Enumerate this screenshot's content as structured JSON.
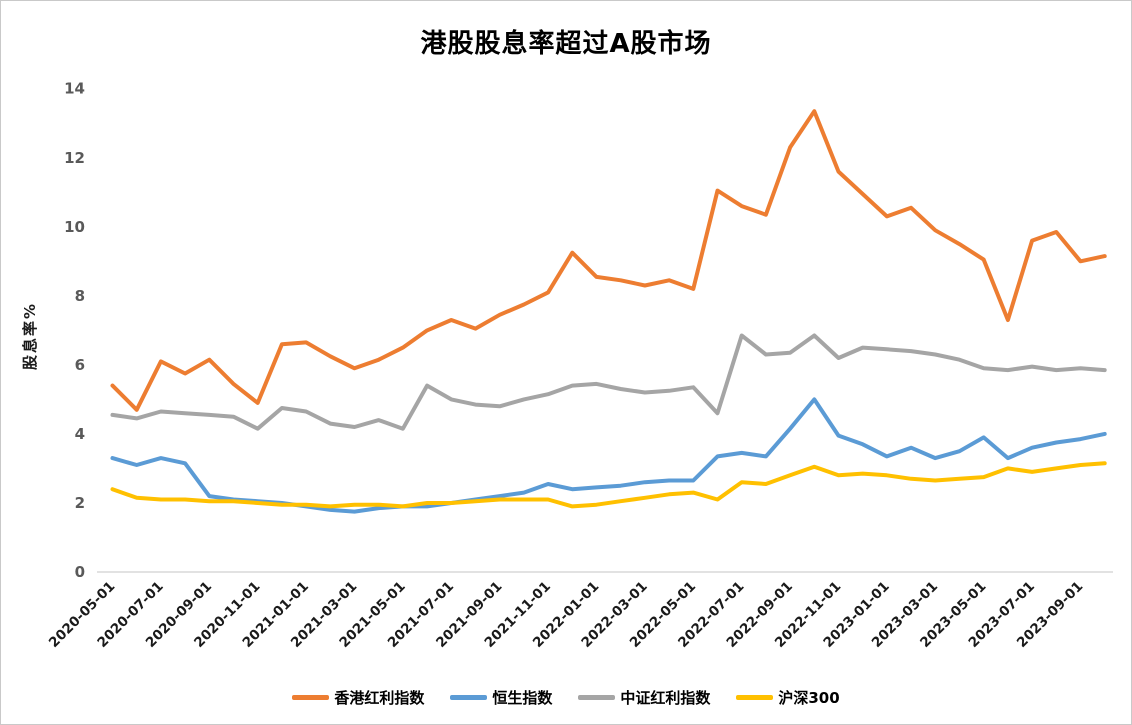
{
  "chart_data": {
    "type": "line",
    "title": "港股股息率超过A股市场",
    "ylabel": "股息率%",
    "xlabel": "",
    "y_ticks": [
      0,
      2,
      4,
      6,
      8,
      10,
      12,
      14
    ],
    "ylim": [
      0,
      14
    ],
    "grid": false,
    "legend_position": "bottom",
    "x_tick_labels": [
      "2020-05-01",
      "2020-07-01",
      "2020-09-01",
      "2020-11-01",
      "2021-01-01",
      "2021-03-01",
      "2021-05-01",
      "2021-07-01",
      "2021-09-01",
      "2021-11-01",
      "2022-01-01",
      "2022-03-01",
      "2022-05-01",
      "2022-07-01",
      "2022-09-01",
      "2022-11-01",
      "2023-01-01",
      "2023-03-01",
      "2023-05-01",
      "2023-07-01",
      "2023-09-01"
    ],
    "months_per_x_label": 2,
    "series": [
      {
        "name": "香港红利指数",
        "color": "#ED7D31",
        "values": [
          5.4,
          4.7,
          6.1,
          5.75,
          6.15,
          5.45,
          4.9,
          6.6,
          6.65,
          6.25,
          5.9,
          6.15,
          6.5,
          7.0,
          7.3,
          7.05,
          7.45,
          7.75,
          8.1,
          9.25,
          8.55,
          8.45,
          8.3,
          8.45,
          8.2,
          11.05,
          10.6,
          10.35,
          12.3,
          13.35,
          11.6,
          10.95,
          10.3,
          10.55,
          9.9,
          9.5,
          9.05,
          7.3,
          9.6,
          9.85,
          9.0,
          9.15
        ]
      },
      {
        "name": "恒生指数",
        "color": "#5B9BD5",
        "values": [
          3.3,
          3.1,
          3.3,
          3.15,
          2.2,
          2.1,
          2.05,
          2.0,
          1.9,
          1.8,
          1.75,
          1.85,
          1.9,
          1.9,
          2.0,
          2.1,
          2.2,
          2.3,
          2.55,
          2.4,
          2.45,
          2.5,
          2.6,
          2.65,
          2.65,
          3.35,
          3.45,
          3.35,
          4.15,
          5.0,
          3.95,
          3.7,
          3.35,
          3.6,
          3.3,
          3.5,
          3.9,
          3.3,
          3.6,
          3.75,
          3.85,
          4.0
        ]
      },
      {
        "name": "中证红利指数",
        "color": "#A5A5A5",
        "values": [
          4.55,
          4.45,
          4.65,
          4.6,
          4.55,
          4.5,
          4.15,
          4.75,
          4.65,
          4.3,
          4.2,
          4.4,
          4.15,
          5.4,
          5.0,
          4.85,
          4.8,
          5.0,
          5.15,
          5.4,
          5.45,
          5.3,
          5.2,
          5.25,
          5.35,
          4.6,
          6.85,
          6.3,
          6.35,
          6.85,
          6.2,
          6.5,
          6.45,
          6.4,
          6.3,
          6.15,
          5.9,
          5.85,
          5.95,
          5.85,
          5.9,
          5.85
        ]
      },
      {
        "name": "沪深300",
        "color": "#FFC000",
        "values": [
          2.4,
          2.15,
          2.1,
          2.1,
          2.05,
          2.05,
          2.0,
          1.95,
          1.95,
          1.9,
          1.95,
          1.95,
          1.9,
          2.0,
          2.0,
          2.05,
          2.1,
          2.1,
          2.1,
          1.9,
          1.95,
          2.05,
          2.15,
          2.25,
          2.3,
          2.1,
          2.6,
          2.55,
          2.8,
          3.05,
          2.8,
          2.85,
          2.8,
          2.7,
          2.65,
          2.7,
          2.75,
          3.0,
          2.9,
          3.0,
          3.1,
          3.15
        ]
      }
    ],
    "colors": {
      "axis_line": "#d9d9d9",
      "y_tick_label": "#595959",
      "x_tick_label": "#1a1a1a",
      "title": "#000000",
      "background": "#ffffff"
    }
  }
}
